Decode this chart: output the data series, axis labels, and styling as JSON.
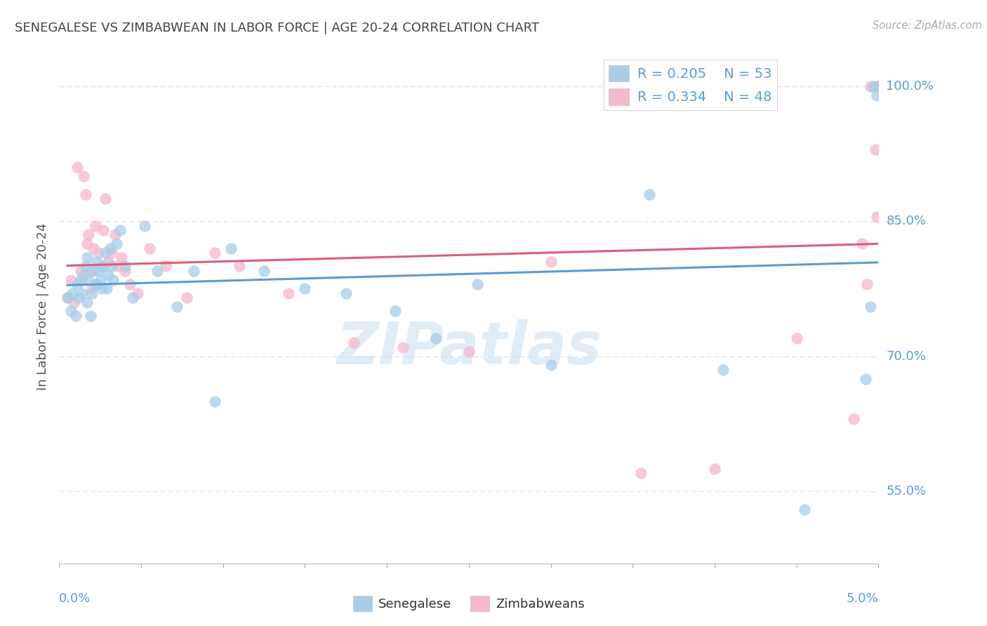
{
  "title": "SENEGALESE VS ZIMBABWEAN IN LABOR FORCE | AGE 20-24 CORRELATION CHART",
  "source": "Source: ZipAtlas.com",
  "ylabel": "In Labor Force | Age 20-24",
  "xlim": [
    0.0,
    5.0
  ],
  "ylim": [
    47.0,
    104.0
  ],
  "yticks": [
    55.0,
    70.0,
    85.0,
    100.0
  ],
  "ytick_labels": [
    "55.0%",
    "70.0%",
    "85.0%",
    "100.0%"
  ],
  "xtick_positions": [
    0.0,
    0.5,
    1.0,
    1.5,
    2.0,
    2.5,
    3.0,
    3.5,
    4.0,
    4.5,
    5.0
  ],
  "legend_r1": "R = 0.205",
  "legend_n1": "N = 53",
  "legend_r2": "R = 0.334",
  "legend_n2": "N = 48",
  "watermark": "ZIPatlas",
  "blue_scatter_color": "#a8cde8",
  "pink_scatter_color": "#f5b8cc",
  "trendline_blue": "#5b9bd5",
  "trendline_pink": "#d9607a",
  "title_color": "#444444",
  "axis_tick_color": "#5b9bd5",
  "legend_text_color": "#5b9bd5",
  "gridline_color": "#dddddd",
  "watermark_color": "#c8def0",
  "senegalese_x": [
    0.05,
    0.07,
    0.08,
    0.1,
    0.11,
    0.12,
    0.13,
    0.14,
    0.15,
    0.16,
    0.17,
    0.17,
    0.18,
    0.19,
    0.2,
    0.21,
    0.22,
    0.23,
    0.24,
    0.25,
    0.26,
    0.27,
    0.28,
    0.29,
    0.3,
    0.31,
    0.32,
    0.33,
    0.35,
    0.37,
    0.4,
    0.45,
    0.52,
    0.6,
    0.72,
    0.82,
    0.95,
    1.05,
    1.25,
    1.5,
    1.75,
    2.05,
    2.3,
    2.55,
    3.0,
    3.6,
    4.05,
    4.55,
    4.92,
    4.95,
    4.97,
    4.99,
    5.0
  ],
  "senegalese_y": [
    76.5,
    75.0,
    77.0,
    74.5,
    78.0,
    76.5,
    78.5,
    77.0,
    79.0,
    80.0,
    76.0,
    81.0,
    78.5,
    74.5,
    77.0,
    79.5,
    78.0,
    80.5,
    79.5,
    78.5,
    77.5,
    80.0,
    81.5,
    77.5,
    79.0,
    82.0,
    80.0,
    78.5,
    82.5,
    84.0,
    80.0,
    76.5,
    84.5,
    79.5,
    75.5,
    79.5,
    65.0,
    82.0,
    79.5,
    77.5,
    77.0,
    75.0,
    72.0,
    78.0,
    69.0,
    88.0,
    68.5,
    53.0,
    67.5,
    75.5,
    100.0,
    99.0,
    100.0
  ],
  "zimbabwean_x": [
    0.05,
    0.07,
    0.09,
    0.11,
    0.13,
    0.15,
    0.16,
    0.17,
    0.18,
    0.19,
    0.2,
    0.21,
    0.22,
    0.23,
    0.24,
    0.26,
    0.27,
    0.28,
    0.3,
    0.32,
    0.34,
    0.36,
    0.38,
    0.4,
    0.43,
    0.48,
    0.55,
    0.65,
    0.78,
    0.95,
    1.1,
    1.4,
    1.8,
    2.1,
    2.5,
    3.0,
    3.55,
    4.0,
    4.5,
    4.85,
    4.9,
    4.93,
    4.95,
    4.97,
    4.98,
    4.99,
    5.0,
    5.0
  ],
  "zimbabwean_y": [
    76.5,
    78.5,
    76.0,
    91.0,
    79.5,
    90.0,
    88.0,
    82.5,
    83.5,
    79.5,
    77.5,
    82.0,
    84.5,
    78.0,
    81.5,
    80.0,
    84.0,
    87.5,
    80.5,
    81.5,
    83.5,
    80.0,
    81.0,
    79.5,
    78.0,
    77.0,
    82.0,
    80.0,
    76.5,
    81.5,
    80.0,
    77.0,
    71.5,
    71.0,
    70.5,
    80.5,
    57.0,
    57.5,
    72.0,
    63.0,
    82.5,
    78.0,
    100.0,
    100.0,
    93.0,
    85.5,
    100.0,
    100.0
  ]
}
